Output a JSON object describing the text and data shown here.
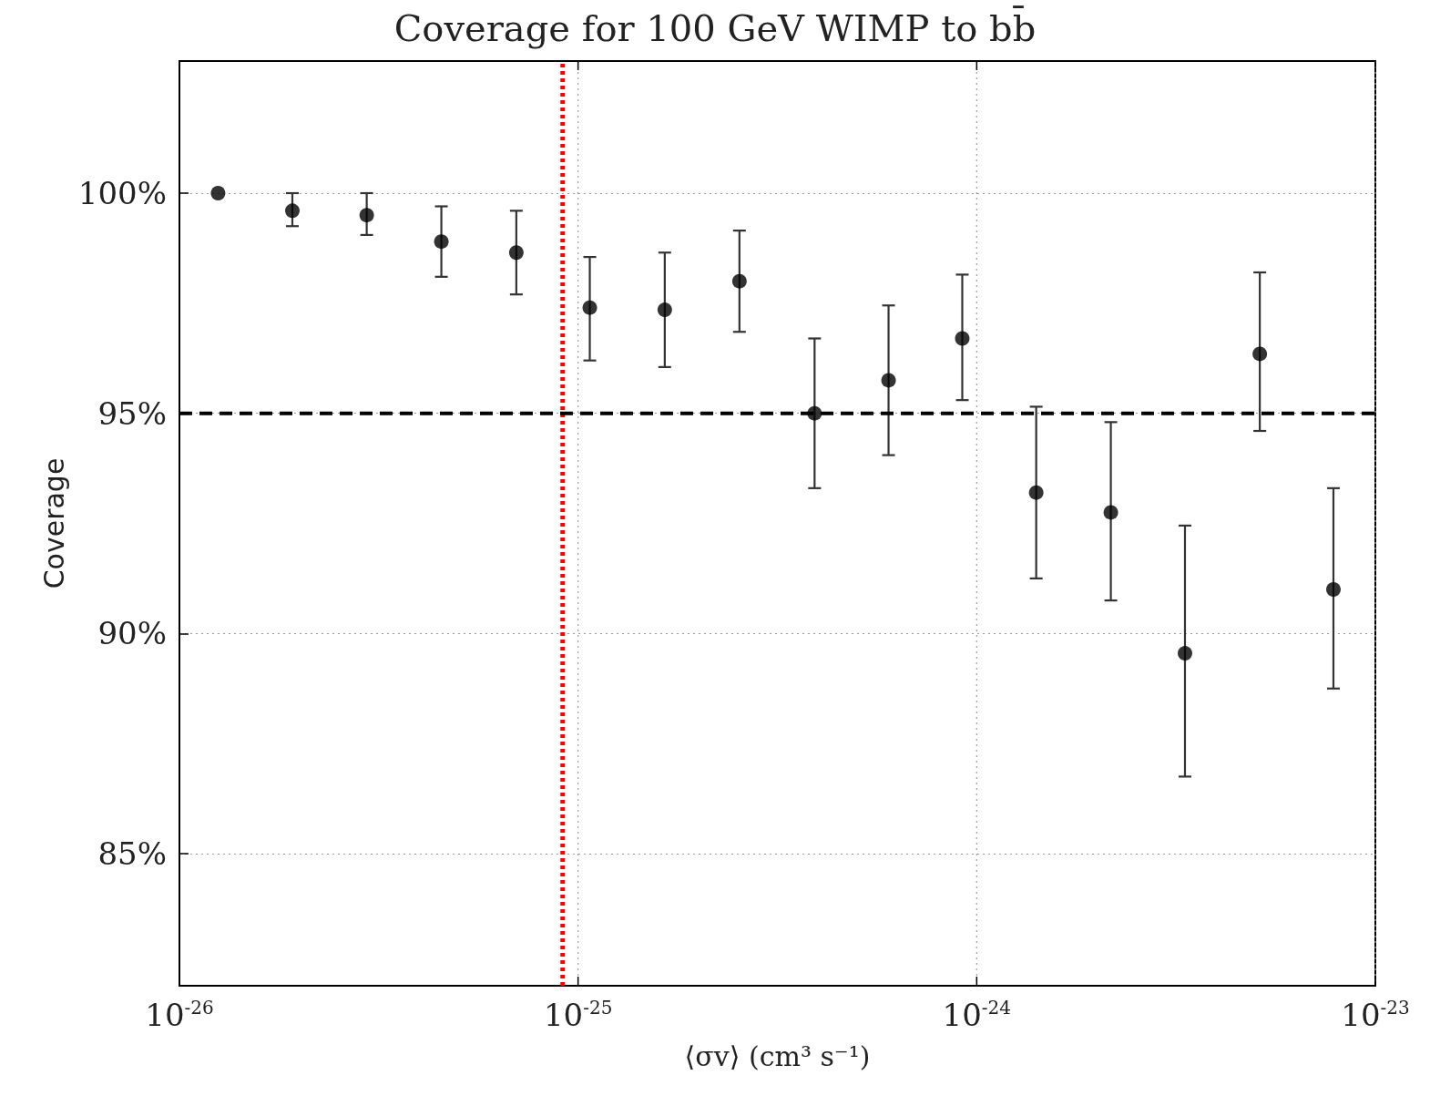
{
  "chart_data": {
    "type": "scatter",
    "title": "Coverage for 100 GeV WIMP to bb̄",
    "xlabel": "⟨σv⟩ (cm³ s⁻¹)",
    "ylabel": "Coverage",
    "log": "x",
    "grid": true,
    "marker": "circle",
    "xlim": [
      1e-26,
      1e-23
    ],
    "xticks": [
      {
        "value": 1e-26,
        "label": "10$^{-26}$"
      },
      {
        "value": 1e-25,
        "label": "10$^{-25}$"
      },
      {
        "value": 1e-24,
        "label": "10$^{-24}$"
      },
      {
        "value": 1e-23,
        "label": "10$^{-23}$"
      }
    ],
    "ylim": [
      82,
      103
    ],
    "yticks": [
      {
        "value": 85,
        "label": "85%"
      },
      {
        "value": 90,
        "label": "90%"
      },
      {
        "value": 95,
        "label": "95%"
      },
      {
        "value": 100,
        "label": "100%"
      }
    ],
    "series": [
      {
        "color": "#000000",
        "x": [
          1.25e-26,
          1.92e-26,
          2.95e-26,
          4.54e-26,
          7e-26,
          1.07e-25,
          1.65e-25,
          2.54e-25,
          3.92e-25,
          6.01e-25,
          9.2e-25,
          1.41e-24,
          2.17e-24,
          3.33e-24,
          5.13e-24,
          7.85e-24
        ],
        "values": [
          100,
          99.6,
          99.5,
          98.9,
          98.65,
          97.4,
          97.35,
          98.0,
          95.0,
          95.75,
          96.7,
          93.2,
          92.75,
          89.55,
          96.35,
          91.0
        ],
        "errors": [
          null,
          [
            99.25,
            100
          ],
          [
            99.05,
            100
          ],
          [
            98.1,
            99.7
          ],
          [
            97.7,
            99.6
          ],
          [
            96.2,
            98.55
          ],
          [
            96.05,
            98.65
          ],
          [
            96.85,
            99.15
          ],
          [
            93.3,
            96.7
          ],
          [
            94.05,
            97.45
          ],
          [
            95.3,
            98.15
          ],
          [
            91.25,
            95.15
          ],
          [
            90.75,
            94.8
          ],
          [
            86.75,
            92.45
          ],
          [
            94.6,
            98.2
          ],
          [
            88.75,
            93.3
          ]
        ]
      }
    ],
    "ref_lines": [
      {
        "axis": "x",
        "value": 9.15e-26,
        "color": "#ff0000",
        "line_style": "dotted"
      },
      {
        "axis": "y",
        "value": 95,
        "color": "#000000",
        "line_style": "dashed"
      }
    ]
  }
}
